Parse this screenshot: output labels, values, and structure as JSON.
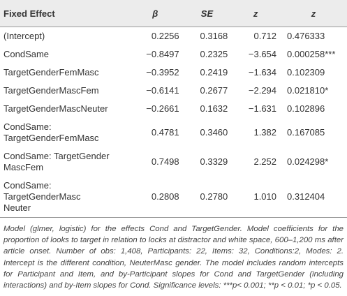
{
  "table": {
    "header": [
      "Fixed Effect",
      "β",
      "SE",
      "z",
      "z"
    ],
    "rows": [
      [
        "(Intercept)",
        "0.2256",
        "0.3168",
        "0.712",
        "0.476333"
      ],
      [
        "CondSame",
        "−0.8497",
        "0.2325",
        "−3.654",
        "0.000258***"
      ],
      [
        "TargetGenderFemMasc",
        "−0.3952",
        "0.2419",
        "−1.634",
        "0.102309"
      ],
      [
        "TargetGenderMascFem",
        "−0.6141",
        "0.2677",
        "−2.294",
        "0.021810*"
      ],
      [
        "TargetGenderMascNeuter",
        "−0.2661",
        "0.1632",
        "−1.631",
        "0.102896"
      ],
      [
        "CondSame: TargetGenderFemMasc",
        "0.4781",
        "0.3460",
        "1.382",
        "0.167085"
      ],
      [
        "CondSame: TargetGender\nMascFem",
        "0.7498",
        "0.3329",
        "2.252",
        "0.024298*"
      ],
      [
        "CondSame: TargetGenderMasc\nNeuter",
        "0.2808",
        "0.2780",
        "1.010",
        "0.312404"
      ]
    ],
    "caption": "Model (glmer, logistic) for the effects Cond and TargetGender. Model coefficients for the proportion of looks to target in relation to locks at distractor and white space, 600–1,200 ms after article onset. Number of obs: 1,408, Participants: 22, Items: 32, Conditions:2, Modes: 2. Intercept is the different condition, NeuterMasc gender. The model includes random intercepts for Participant and Item, and by-Participant slopes for Cond and TargetGender (including interactions) and by-Item slopes for Cond. Significance levels: ***p< 0.001; **p < 0.01; *p < 0.05."
  }
}
